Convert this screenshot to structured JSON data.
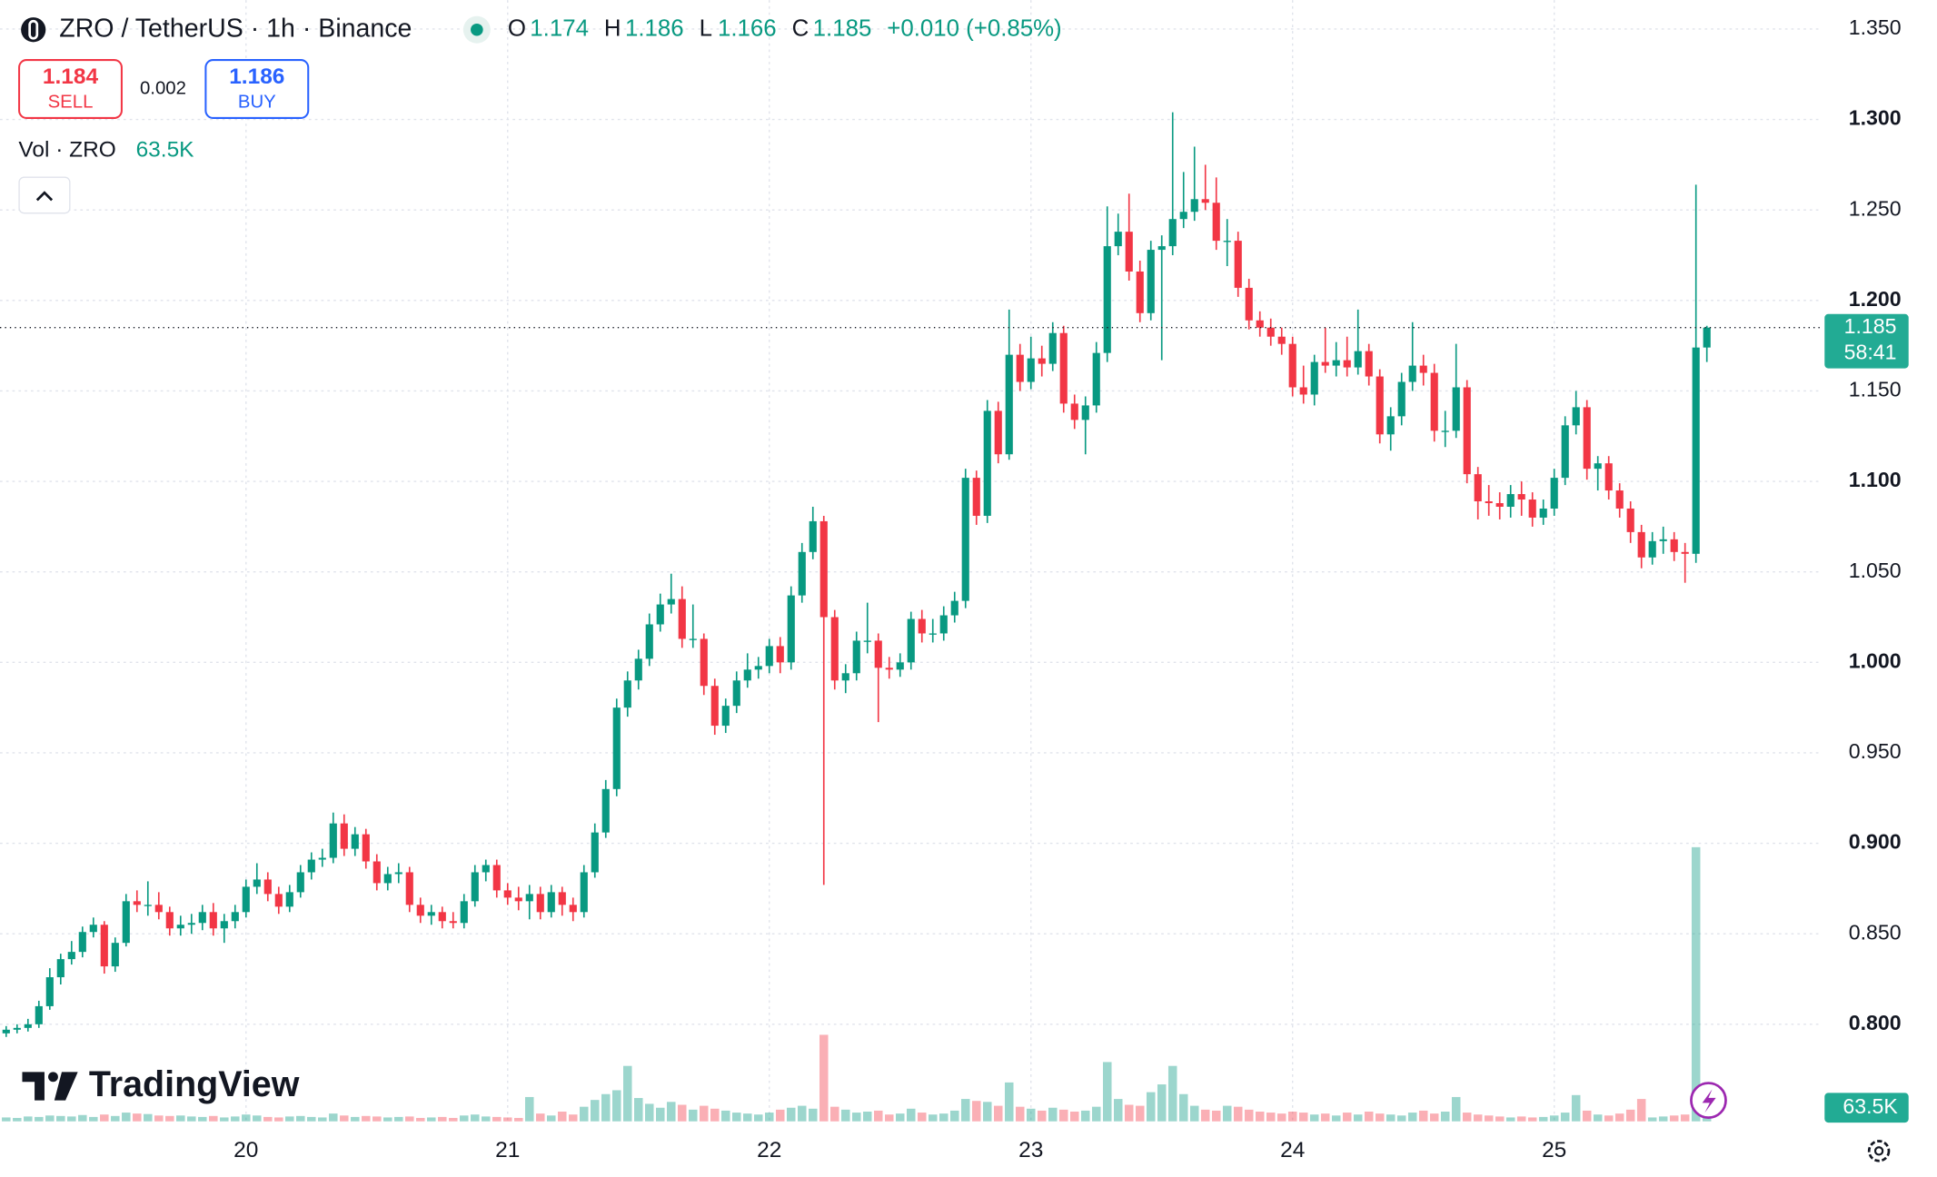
{
  "chart_data": {
    "type": "candlestick",
    "symbol": "ZRO / TetherUS · 1h · Binance",
    "ohlc_letters": [
      "O",
      "H",
      "L",
      "C"
    ],
    "change": "+0.010 (+0.85%)",
    "sell": {
      "price": "1.184",
      "label": "SELL"
    },
    "spread": "0.002",
    "buy": {
      "price": "1.186",
      "label": "BUY"
    },
    "volume_title": "Vol · ZRO",
    "volume_value_label": "63.5K",
    "countdown": "58:41",
    "logo": "TradingView",
    "up_color": "#089981",
    "down_color": "#f23645",
    "grid": true,
    "ylim": [
      0.745,
      1.366
    ],
    "yticks": [
      {
        "value": 0.8,
        "label": "0.800"
      },
      {
        "value": 0.85,
        "label": "0.850"
      },
      {
        "value": 0.9,
        "label": "0.900"
      },
      {
        "value": 0.95,
        "label": "0.950"
      },
      {
        "value": 1.0,
        "label": "1.000"
      },
      {
        "value": 1.05,
        "label": "1.050"
      },
      {
        "value": 1.1,
        "label": "1.100"
      },
      {
        "value": 1.15,
        "label": "1.150"
      },
      {
        "value": 1.2,
        "label": "1.200"
      },
      {
        "value": 1.25,
        "label": "1.250"
      },
      {
        "value": 1.3,
        "label": "1.300"
      },
      {
        "value": 1.35,
        "label": "1.350"
      }
    ],
    "categories": [
      null,
      null,
      null,
      null,
      null,
      null,
      null,
      null,
      null,
      null,
      null,
      null,
      null,
      null,
      null,
      null,
      null,
      null,
      null,
      null,
      null,
      null,
      "20",
      null,
      null,
      null,
      null,
      null,
      null,
      null,
      null,
      null,
      null,
      null,
      null,
      null,
      null,
      null,
      null,
      null,
      null,
      null,
      null,
      null,
      null,
      null,
      "21",
      null,
      null,
      null,
      null,
      null,
      null,
      null,
      null,
      null,
      null,
      null,
      null,
      null,
      null,
      null,
      null,
      null,
      null,
      null,
      null,
      null,
      null,
      null,
      "22",
      null,
      null,
      null,
      null,
      null,
      null,
      null,
      null,
      null,
      null,
      null,
      null,
      null,
      null,
      null,
      null,
      null,
      null,
      null,
      null,
      null,
      null,
      null,
      "23",
      null,
      null,
      null,
      null,
      null,
      null,
      null,
      null,
      null,
      null,
      null,
      null,
      null,
      null,
      null,
      null,
      null,
      null,
      null,
      null,
      null,
      null,
      null,
      "24",
      null,
      null,
      null,
      null,
      null,
      null,
      null,
      null,
      null,
      null,
      null,
      null,
      null,
      null,
      null,
      null,
      null,
      null,
      null,
      null,
      null,
      null,
      null,
      "25",
      null,
      null,
      null,
      null,
      null,
      null,
      null,
      null,
      null,
      null,
      null,
      null,
      null,
      null
    ],
    "ohlc": [
      [
        0.795,
        0.799,
        0.793,
        0.797
      ],
      [
        0.797,
        0.8,
        0.795,
        0.798
      ],
      [
        0.798,
        0.803,
        0.796,
        0.8
      ],
      [
        0.8,
        0.813,
        0.798,
        0.81
      ],
      [
        0.81,
        0.831,
        0.808,
        0.826
      ],
      [
        0.826,
        0.839,
        0.822,
        0.836
      ],
      [
        0.836,
        0.846,
        0.833,
        0.84
      ],
      [
        0.84,
        0.854,
        0.837,
        0.851
      ],
      [
        0.851,
        0.859,
        0.848,
        0.855
      ],
      [
        0.855,
        0.857,
        0.828,
        0.832
      ],
      [
        0.832,
        0.848,
        0.829,
        0.845
      ],
      [
        0.845,
        0.872,
        0.843,
        0.868
      ],
      [
        0.868,
        0.874,
        0.862,
        0.866
      ],
      [
        0.866,
        0.879,
        0.86,
        0.866
      ],
      [
        0.866,
        0.873,
        0.858,
        0.862
      ],
      [
        0.862,
        0.865,
        0.849,
        0.853
      ],
      [
        0.853,
        0.86,
        0.849,
        0.855
      ],
      [
        0.855,
        0.861,
        0.85,
        0.856
      ],
      [
        0.856,
        0.866,
        0.852,
        0.862
      ],
      [
        0.862,
        0.867,
        0.849,
        0.853
      ],
      [
        0.853,
        0.861,
        0.845,
        0.857
      ],
      [
        0.857,
        0.866,
        0.853,
        0.862
      ],
      [
        0.862,
        0.88,
        0.859,
        0.876
      ],
      [
        0.876,
        0.889,
        0.872,
        0.88
      ],
      [
        0.88,
        0.884,
        0.868,
        0.872
      ],
      [
        0.872,
        0.876,
        0.861,
        0.865
      ],
      [
        0.865,
        0.877,
        0.862,
        0.873
      ],
      [
        0.873,
        0.888,
        0.87,
        0.884
      ],
      [
        0.884,
        0.895,
        0.88,
        0.891
      ],
      [
        0.891,
        0.897,
        0.887,
        0.892
      ],
      [
        0.892,
        0.917,
        0.889,
        0.911
      ],
      [
        0.911,
        0.916,
        0.893,
        0.897
      ],
      [
        0.897,
        0.909,
        0.893,
        0.905
      ],
      [
        0.905,
        0.908,
        0.886,
        0.89
      ],
      [
        0.89,
        0.894,
        0.874,
        0.878
      ],
      [
        0.878,
        0.887,
        0.874,
        0.883
      ],
      [
        0.883,
        0.889,
        0.878,
        0.884
      ],
      [
        0.884,
        0.887,
        0.862,
        0.866
      ],
      [
        0.866,
        0.87,
        0.856,
        0.86
      ],
      [
        0.86,
        0.866,
        0.855,
        0.862
      ],
      [
        0.862,
        0.865,
        0.853,
        0.857
      ],
      [
        0.857,
        0.862,
        0.853,
        0.856
      ],
      [
        0.856,
        0.872,
        0.853,
        0.868
      ],
      [
        0.868,
        0.888,
        0.865,
        0.884
      ],
      [
        0.884,
        0.891,
        0.879,
        0.888
      ],
      [
        0.888,
        0.891,
        0.87,
        0.874
      ],
      [
        0.874,
        0.878,
        0.866,
        0.87
      ],
      [
        0.87,
        0.876,
        0.863,
        0.868
      ],
      [
        0.868,
        0.877,
        0.858,
        0.872
      ],
      [
        0.872,
        0.876,
        0.858,
        0.862
      ],
      [
        0.862,
        0.877,
        0.859,
        0.873
      ],
      [
        0.873,
        0.876,
        0.86,
        0.866
      ],
      [
        0.866,
        0.87,
        0.857,
        0.862
      ],
      [
        0.862,
        0.888,
        0.859,
        0.884
      ],
      [
        0.884,
        0.911,
        0.881,
        0.906
      ],
      [
        0.906,
        0.935,
        0.903,
        0.93
      ],
      [
        0.93,
        0.98,
        0.926,
        0.975
      ],
      [
        0.975,
        0.995,
        0.97,
        0.99
      ],
      [
        0.99,
        1.007,
        0.985,
        1.002
      ],
      [
        1.002,
        1.027,
        0.998,
        1.021
      ],
      [
        1.021,
        1.038,
        1.017,
        1.032
      ],
      [
        1.032,
        1.049,
        1.027,
        1.035
      ],
      [
        1.035,
        1.042,
        1.008,
        1.013
      ],
      [
        1.013,
        1.032,
        1.008,
        1.013
      ],
      [
        1.013,
        1.016,
        0.982,
        0.987
      ],
      [
        0.987,
        0.991,
        0.96,
        0.965
      ],
      [
        0.965,
        0.98,
        0.961,
        0.976
      ],
      [
        0.976,
        0.995,
        0.972,
        0.99
      ],
      [
        0.99,
        1.005,
        0.986,
        0.996
      ],
      [
        0.996,
        1.003,
        0.991,
        0.998
      ],
      [
        0.998,
        1.013,
        0.994,
        1.009
      ],
      [
        1.009,
        1.014,
        0.994,
        1.0
      ],
      [
        1.0,
        1.042,
        0.996,
        1.037
      ],
      [
        1.037,
        1.066,
        1.033,
        1.061
      ],
      [
        1.061,
        1.086,
        1.057,
        1.078
      ],
      [
        1.078,
        1.081,
        0.877,
        1.025
      ],
      [
        1.025,
        1.029,
        0.985,
        0.99
      ],
      [
        0.99,
        0.999,
        0.983,
        0.994
      ],
      [
        0.994,
        1.017,
        0.99,
        1.012
      ],
      [
        1.012,
        1.033,
        1.005,
        1.012
      ],
      [
        1.012,
        1.016,
        0.967,
        0.997
      ],
      [
        0.997,
        1.003,
        0.991,
        0.996
      ],
      [
        0.996,
        1.005,
        0.992,
        1.0
      ],
      [
        1.0,
        1.028,
        0.996,
        1.024
      ],
      [
        1.024,
        1.029,
        1.011,
        1.016
      ],
      [
        1.016,
        1.024,
        1.011,
        1.016
      ],
      [
        1.016,
        1.031,
        1.012,
        1.026
      ],
      [
        1.026,
        1.039,
        1.022,
        1.034
      ],
      [
        1.034,
        1.107,
        1.03,
        1.102
      ],
      [
        1.102,
        1.106,
        1.076,
        1.081
      ],
      [
        1.081,
        1.145,
        1.077,
        1.139
      ],
      [
        1.139,
        1.144,
        1.11,
        1.115
      ],
      [
        1.115,
        1.195,
        1.112,
        1.17
      ],
      [
        1.17,
        1.176,
        1.15,
        1.155
      ],
      [
        1.155,
        1.18,
        1.151,
        1.168
      ],
      [
        1.168,
        1.175,
        1.158,
        1.165
      ],
      [
        1.165,
        1.188,
        1.161,
        1.182
      ],
      [
        1.182,
        1.186,
        1.138,
        1.143
      ],
      [
        1.143,
        1.148,
        1.129,
        1.134
      ],
      [
        1.134,
        1.147,
        1.115,
        1.142
      ],
      [
        1.142,
        1.177,
        1.138,
        1.171
      ],
      [
        1.171,
        1.252,
        1.166,
        1.23
      ],
      [
        1.23,
        1.248,
        1.225,
        1.238
      ],
      [
        1.238,
        1.259,
        1.211,
        1.216
      ],
      [
        1.216,
        1.222,
        1.188,
        1.193
      ],
      [
        1.193,
        1.233,
        1.189,
        1.228
      ],
      [
        1.228,
        1.236,
        1.167,
        1.23
      ],
      [
        1.23,
        1.304,
        1.225,
        1.245
      ],
      [
        1.245,
        1.271,
        1.24,
        1.249
      ],
      [
        1.249,
        1.285,
        1.244,
        1.256
      ],
      [
        1.256,
        1.275,
        1.25,
        1.254
      ],
      [
        1.254,
        1.268,
        1.228,
        1.233
      ],
      [
        1.233,
        1.245,
        1.219,
        1.233
      ],
      [
        1.233,
        1.238,
        1.202,
        1.207
      ],
      [
        1.207,
        1.212,
        1.184,
        1.189
      ],
      [
        1.189,
        1.194,
        1.18,
        1.185
      ],
      [
        1.185,
        1.19,
        1.175,
        1.18
      ],
      [
        1.18,
        1.185,
        1.17,
        1.176
      ],
      [
        1.176,
        1.18,
        1.147,
        1.152
      ],
      [
        1.152,
        1.164,
        1.143,
        1.148
      ],
      [
        1.148,
        1.17,
        1.142,
        1.166
      ],
      [
        1.166,
        1.185,
        1.16,
        1.164
      ],
      [
        1.164,
        1.177,
        1.158,
        1.167
      ],
      [
        1.167,
        1.18,
        1.158,
        1.163
      ],
      [
        1.163,
        1.195,
        1.159,
        1.172
      ],
      [
        1.172,
        1.176,
        1.153,
        1.158
      ],
      [
        1.158,
        1.162,
        1.121,
        1.126
      ],
      [
        1.126,
        1.141,
        1.117,
        1.136
      ],
      [
        1.136,
        1.16,
        1.131,
        1.155
      ],
      [
        1.155,
        1.188,
        1.15,
        1.164
      ],
      [
        1.164,
        1.17,
        1.153,
        1.16
      ],
      [
        1.16,
        1.165,
        1.122,
        1.128
      ],
      [
        1.128,
        1.139,
        1.119,
        1.128
      ],
      [
        1.128,
        1.176,
        1.124,
        1.152
      ],
      [
        1.152,
        1.156,
        1.099,
        1.104
      ],
      [
        1.104,
        1.108,
        1.079,
        1.089
      ],
      [
        1.089,
        1.098,
        1.081,
        1.088
      ],
      [
        1.088,
        1.094,
        1.079,
        1.086
      ],
      [
        1.086,
        1.098,
        1.08,
        1.093
      ],
      [
        1.093,
        1.1,
        1.081,
        1.09
      ],
      [
        1.09,
        1.094,
        1.075,
        1.08
      ],
      [
        1.08,
        1.09,
        1.076,
        1.085
      ],
      [
        1.085,
        1.107,
        1.081,
        1.102
      ],
      [
        1.102,
        1.136,
        1.098,
        1.131
      ],
      [
        1.131,
        1.15,
        1.126,
        1.141
      ],
      [
        1.141,
        1.145,
        1.101,
        1.107
      ],
      [
        1.107,
        1.114,
        1.095,
        1.11
      ],
      [
        1.11,
        1.114,
        1.09,
        1.095
      ],
      [
        1.095,
        1.099,
        1.08,
        1.085
      ],
      [
        1.085,
        1.089,
        1.066,
        1.072
      ],
      [
        1.072,
        1.076,
        1.052,
        1.058
      ],
      [
        1.058,
        1.072,
        1.054,
        1.067
      ],
      [
        1.067,
        1.075,
        1.06,
        1.068
      ],
      [
        1.068,
        1.072,
        1.056,
        1.061
      ],
      [
        1.061,
        1.066,
        1.044,
        1.06
      ],
      [
        1.06,
        1.264,
        1.055,
        1.174
      ],
      [
        1.174,
        1.186,
        1.166,
        1.185
      ]
    ],
    "volume": [
      40,
      35,
      50,
      45,
      60,
      55,
      50,
      65,
      45,
      70,
      55,
      90,
      80,
      75,
      60,
      55,
      60,
      50,
      45,
      55,
      40,
      50,
      70,
      60,
      45,
      40,
      50,
      55,
      45,
      40,
      80,
      60,
      45,
      55,
      50,
      40,
      45,
      50,
      35,
      40,
      45,
      35,
      60,
      70,
      50,
      45,
      40,
      35,
      250,
      80,
      60,
      100,
      70,
      150,
      220,
      280,
      320,
      570,
      240,
      180,
      140,
      200,
      170,
      120,
      160,
      130,
      110,
      90,
      80,
      70,
      90,
      120,
      140,
      160,
      130,
      890,
      150,
      120,
      90,
      100,
      110,
      70,
      80,
      130,
      90,
      70,
      80,
      110,
      230,
      210,
      200,
      160,
      400,
      150,
      130,
      110,
      140,
      120,
      100,
      110,
      150,
      610,
      230,
      170,
      160,
      300,
      380,
      570,
      280,
      160,
      120,
      110,
      160,
      150,
      120,
      100,
      90,
      80,
      100,
      90,
      70,
      80,
      60,
      90,
      70,
      100,
      80,
      70,
      60,
      90,
      110,
      80,
      100,
      250,
      90,
      70,
      60,
      50,
      40,
      50,
      40,
      45,
      60,
      90,
      270,
      110,
      70,
      60,
      80,
      120,
      230,
      40,
      50,
      60,
      70,
      2820,
      63.5
    ]
  }
}
